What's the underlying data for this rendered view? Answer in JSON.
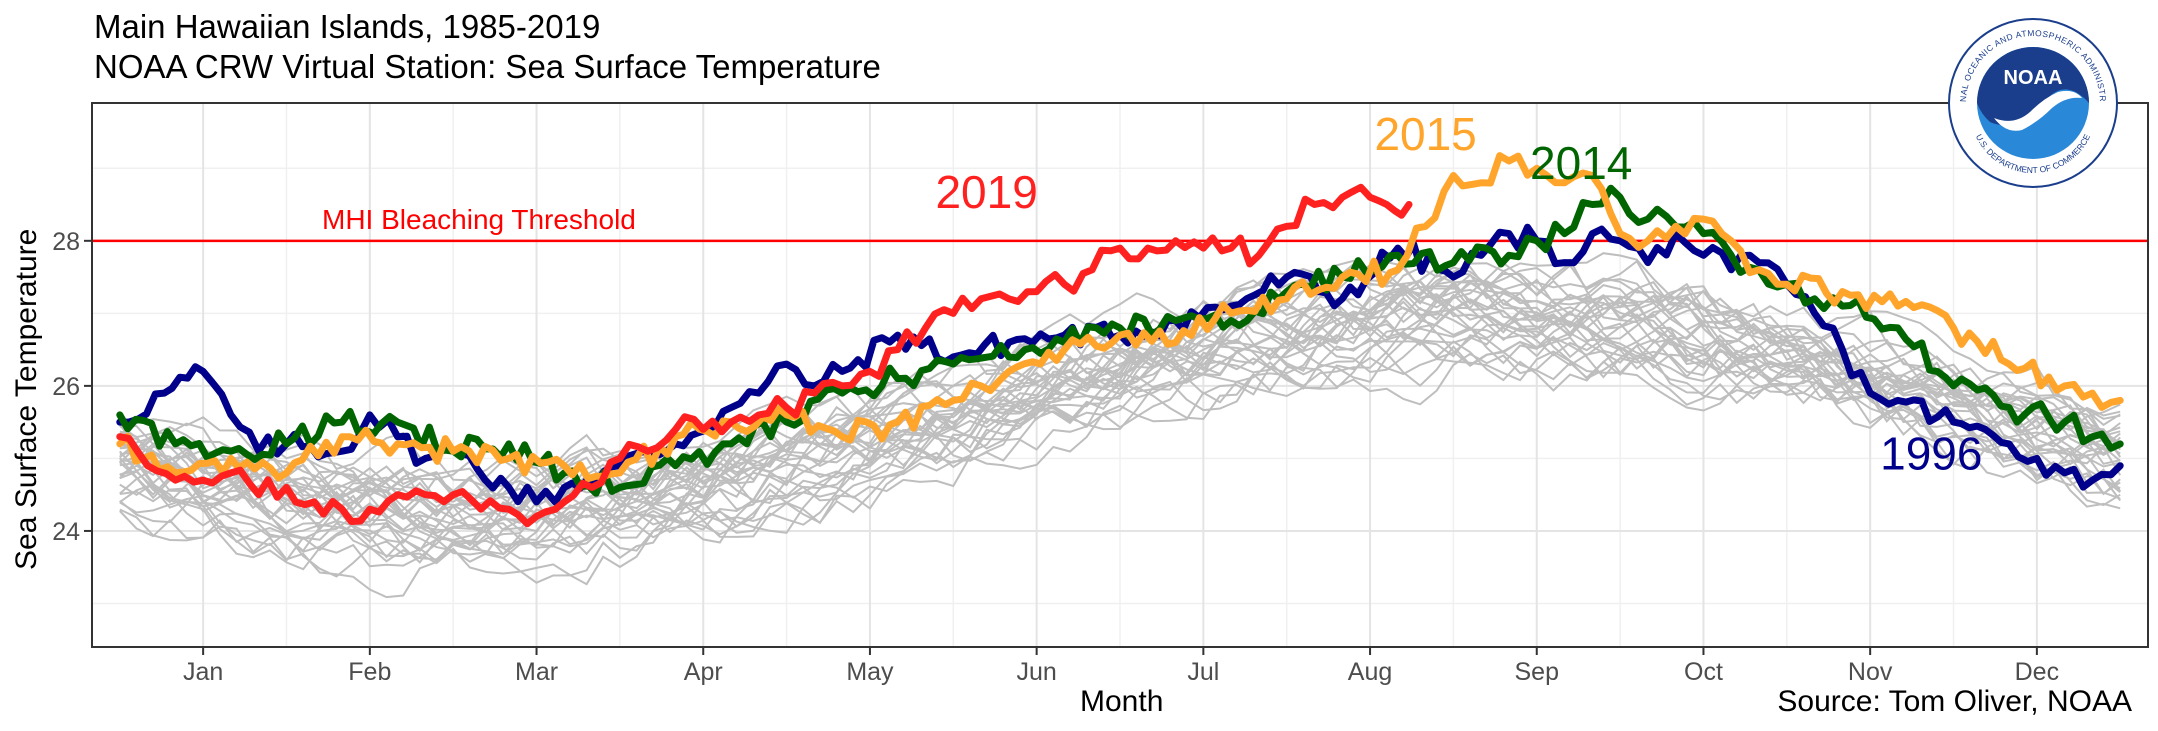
{
  "chart_data": {
    "type": "line",
    "title": "Main Hawaiian Islands, 1985-2019",
    "subtitle": "NOAA CRW Virtual Station: Sea Surface Temperature",
    "xlabel": "Month",
    "ylabel": "Sea Surface Temperature",
    "source": "Source: Tom Oliver, NOAA",
    "x_tick_labels": [
      "Jan",
      "Feb",
      "Mar",
      "Apr",
      "May",
      "Jun",
      "Jul",
      "Aug",
      "Sep",
      "Oct",
      "Nov",
      "Dec"
    ],
    "x_tick_days": [
      15,
      45,
      75,
      105,
      135,
      165,
      195,
      225,
      255,
      285,
      315,
      345
    ],
    "xlim": [
      -5,
      365
    ],
    "ylim": [
      22.4,
      29.9
    ],
    "y_ticks": [
      24,
      26,
      28
    ],
    "grid": true,
    "threshold": {
      "label": "MHI Bleaching Threshold",
      "value": 28.0,
      "color": "#ff0000"
    },
    "background_years": {
      "label_note": "",
      "count": 32,
      "color": "#bebebe",
      "years_range": "1985-2019"
    },
    "series": [
      {
        "name": "1996",
        "color": "#00008b",
        "x": [
          0,
          8,
          15,
          20,
          25,
          30,
          40,
          45,
          50,
          55,
          60,
          70,
          75,
          80,
          90,
          100,
          110,
          115,
          120,
          125,
          130,
          140,
          150,
          160,
          170,
          180,
          190,
          200,
          210,
          220,
          230,
          240,
          245,
          250,
          255,
          260,
          265,
          270,
          275,
          280,
          285,
          290,
          295,
          300,
          305,
          310,
          315,
          320,
          330,
          340,
          345,
          350,
          355,
          360
        ],
        "y": [
          25.5,
          25.9,
          26.2,
          25.6,
          25.1,
          25.2,
          25.1,
          25.6,
          25.3,
          25.0,
          25.1,
          24.6,
          24.4,
          24.6,
          24.9,
          25.2,
          25.7,
          25.9,
          26.3,
          26.0,
          26.2,
          26.7,
          26.4,
          26.6,
          26.7,
          26.7,
          26.9,
          27.1,
          27.5,
          27.2,
          27.9,
          27.5,
          27.8,
          28.1,
          28.0,
          27.7,
          28.1,
          28.0,
          27.7,
          28.1,
          27.8,
          27.6,
          27.7,
          27.4,
          27.0,
          26.5,
          25.9,
          25.8,
          25.5,
          25.2,
          25.0,
          24.8,
          24.7,
          24.9
        ]
      },
      {
        "name": "2014",
        "color": "#006400",
        "x": [
          0,
          10,
          20,
          30,
          40,
          50,
          60,
          70,
          80,
          90,
          100,
          110,
          120,
          130,
          140,
          150,
          160,
          170,
          180,
          190,
          200,
          210,
          220,
          230,
          240,
          250,
          255,
          260,
          265,
          270,
          275,
          280,
          285,
          290,
          295,
          300,
          305,
          310,
          320,
          330,
          340,
          350,
          355,
          360
        ],
        "y": [
          25.6,
          25.2,
          25.1,
          25.2,
          25.5,
          25.5,
          25.1,
          25.2,
          24.8,
          24.6,
          24.9,
          25.2,
          25.5,
          25.9,
          26.1,
          26.3,
          26.4,
          26.6,
          26.8,
          26.9,
          26.9,
          27.3,
          27.5,
          27.8,
          27.7,
          27.8,
          28.0,
          28.1,
          28.5,
          28.6,
          28.3,
          28.2,
          28.1,
          27.8,
          27.6,
          27.4,
          27.2,
          27.1,
          26.8,
          26.0,
          25.7,
          25.5,
          25.3,
          25.2
        ]
      },
      {
        "name": "2015",
        "color": "#ffa52c",
        "x": [
          0,
          10,
          20,
          30,
          40,
          50,
          60,
          70,
          80,
          90,
          100,
          110,
          120,
          130,
          140,
          150,
          155,
          160,
          170,
          180,
          190,
          200,
          210,
          220,
          230,
          235,
          240,
          245,
          250,
          255,
          260,
          265,
          270,
          275,
          280,
          285,
          290,
          295,
          300,
          310,
          320,
          330,
          340,
          350,
          355,
          360
        ],
        "y": [
          25.2,
          24.8,
          25.0,
          24.8,
          25.3,
          25.2,
          25.1,
          25.0,
          24.9,
          24.8,
          25.3,
          25.5,
          25.6,
          25.3,
          25.5,
          25.8,
          26.0,
          26.2,
          26.5,
          26.7,
          26.6,
          27.0,
          27.2,
          27.5,
          27.6,
          28.2,
          28.9,
          28.8,
          29.1,
          29.0,
          28.8,
          28.9,
          28.1,
          28.0,
          28.2,
          28.3,
          28.0,
          27.6,
          27.4,
          27.3,
          27.1,
          26.8,
          26.3,
          26.0,
          25.9,
          25.8
        ]
      },
      {
        "name": "2019",
        "color": "#ff2020",
        "x": [
          0,
          5,
          10,
          15,
          20,
          25,
          30,
          35,
          40,
          45,
          50,
          55,
          60,
          65,
          70,
          75,
          80,
          85,
          90,
          95,
          100,
          105,
          110,
          115,
          120,
          125,
          130,
          135,
          140,
          145,
          150,
          155,
          160,
          165,
          170,
          175,
          180,
          185,
          190,
          195,
          200,
          205,
          210,
          215,
          220,
          225,
          228,
          232
        ],
        "y": [
          25.3,
          24.9,
          24.7,
          24.7,
          24.8,
          24.5,
          24.6,
          24.4,
          24.3,
          24.3,
          24.5,
          24.5,
          24.5,
          24.3,
          24.3,
          24.2,
          24.4,
          24.6,
          25.0,
          25.1,
          25.4,
          25.4,
          25.5,
          25.6,
          25.7,
          25.9,
          26.0,
          26.2,
          26.5,
          26.8,
          27.0,
          27.2,
          27.2,
          27.3,
          27.4,
          27.6,
          27.9,
          27.9,
          28.0,
          27.9,
          27.9,
          27.8,
          28.2,
          28.5,
          28.6,
          28.6,
          28.5,
          28.5
        ]
      }
    ],
    "series_labels": [
      {
        "name": "2019",
        "text": "2019",
        "color": "#ff2020",
        "x": 156,
        "y": 28.45
      },
      {
        "name": "2015",
        "text": "2015",
        "color": "#ffa52c",
        "x": 235,
        "y": 29.25
      },
      {
        "name": "2014",
        "text": "2014",
        "color": "#006400",
        "x": 263,
        "y": 28.85
      },
      {
        "name": "1996",
        "text": "1996",
        "color": "#00008b",
        "x": 326,
        "y": 24.85
      }
    ]
  },
  "logo": {
    "text": "NOAA",
    "ring_text": "NATIONAL OCEANIC AND ATMOSPHERIC ADMINISTRATION",
    "bottom_text": "U.S. DEPARTMENT OF COMMERCE",
    "color": "#1a3e8c",
    "accent": "#2a88d8"
  }
}
